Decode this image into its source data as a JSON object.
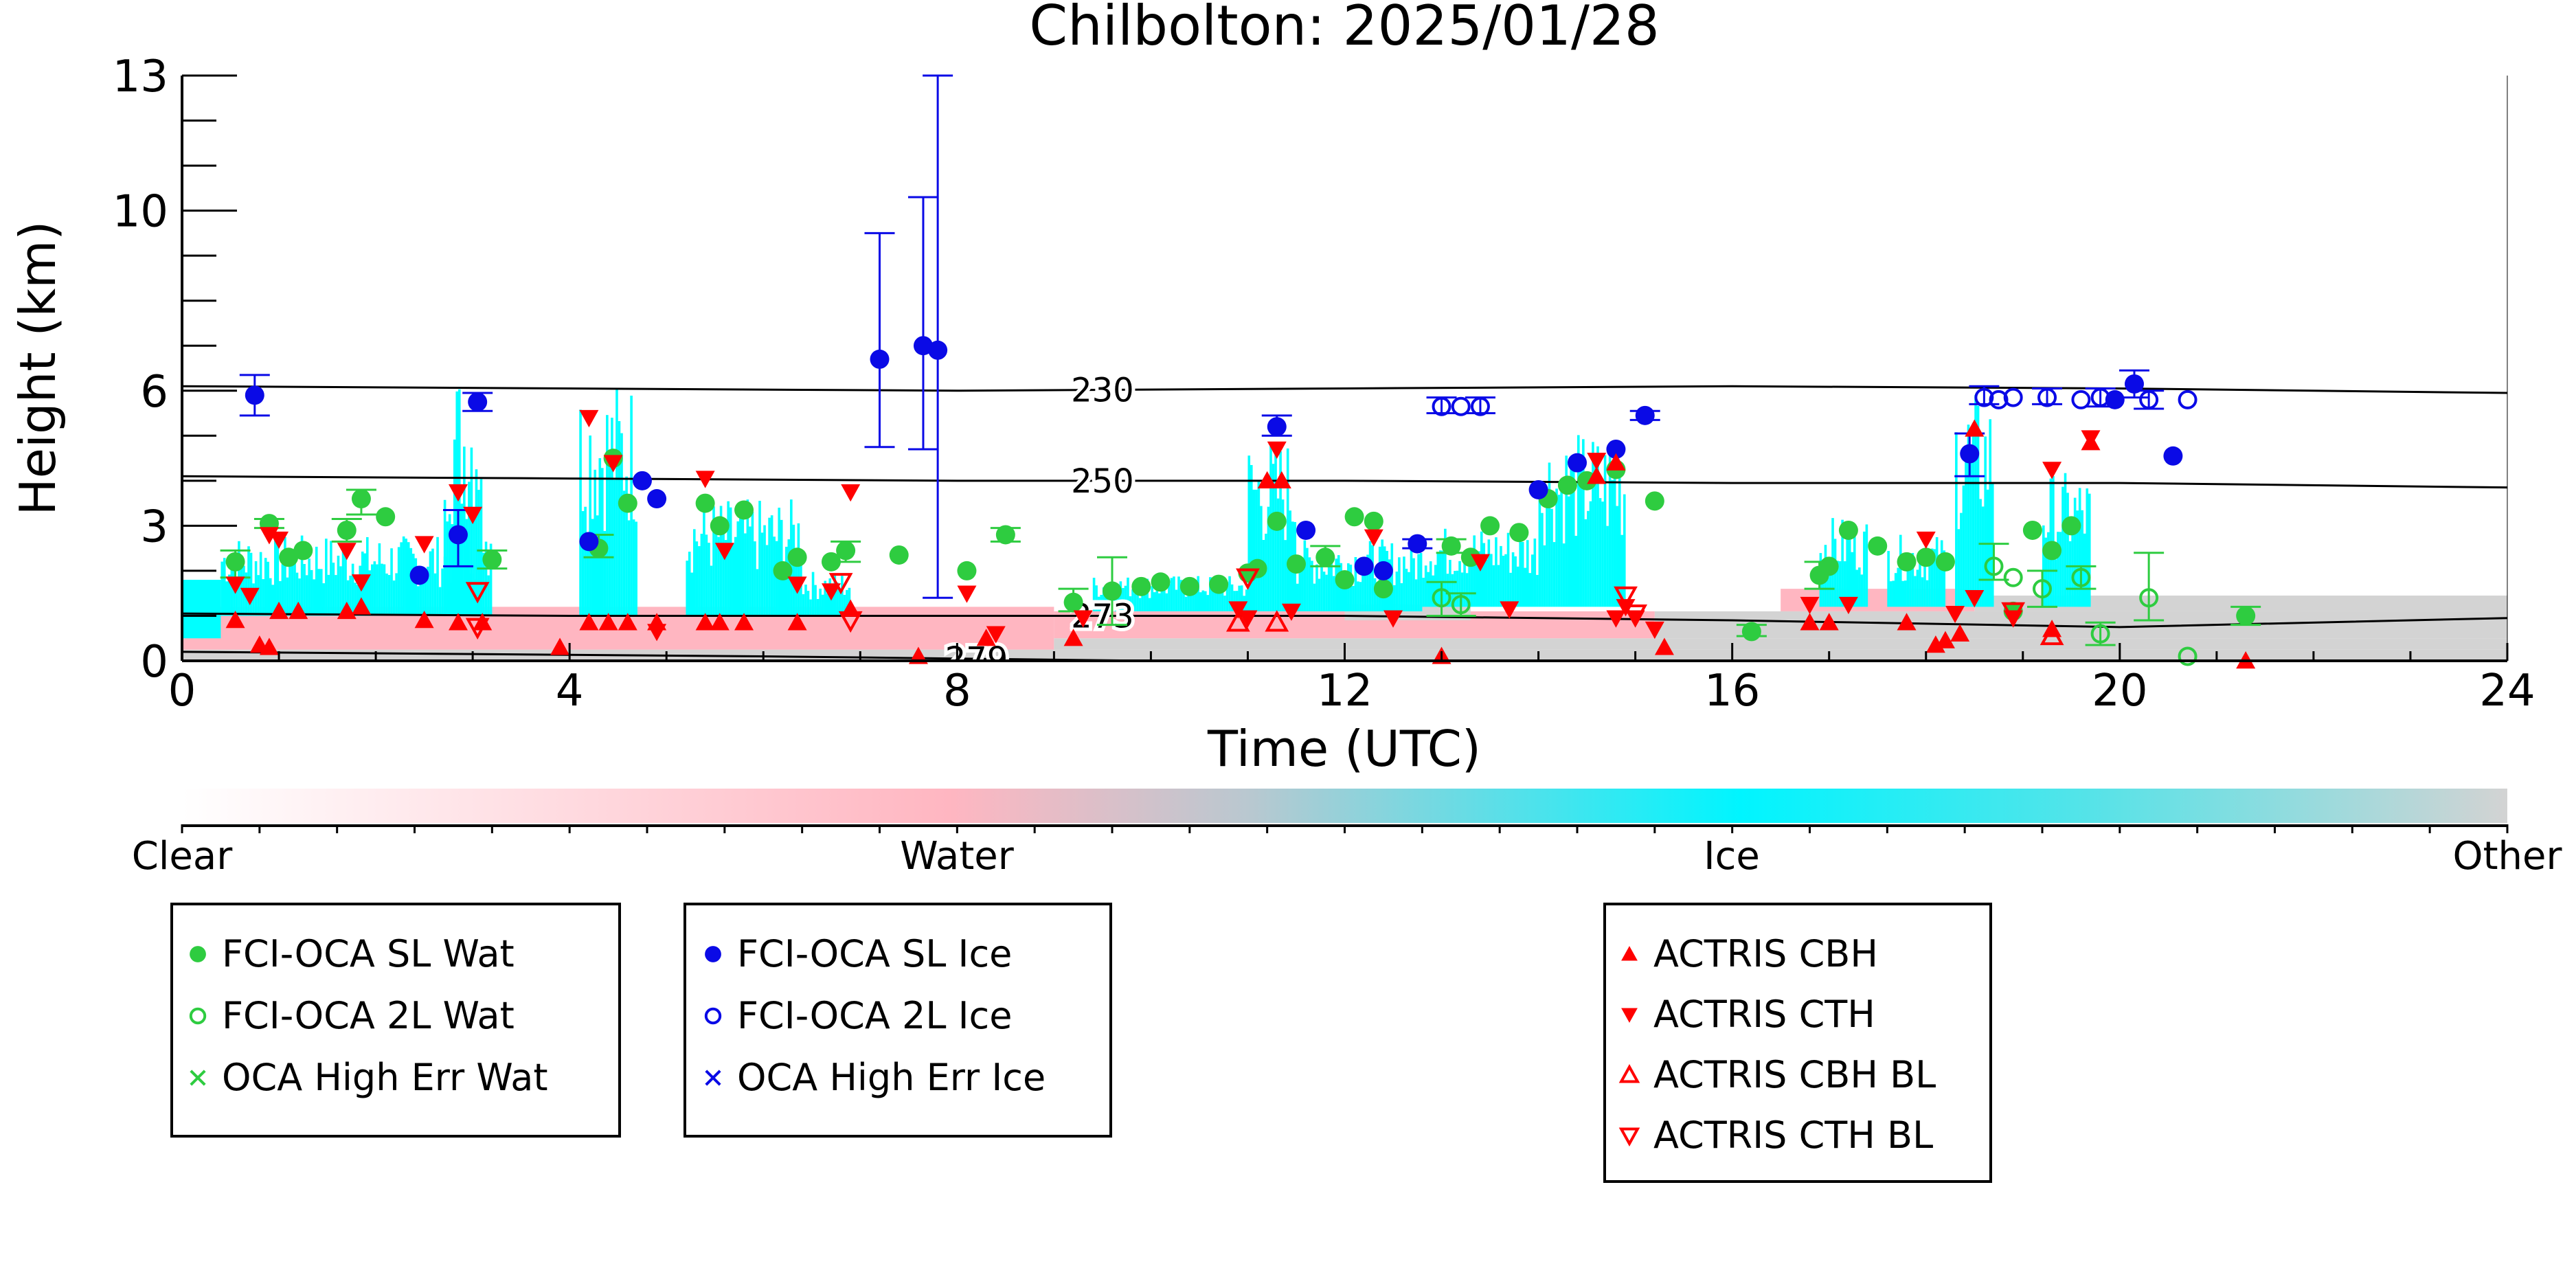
{
  "chart_data": {
    "type": "scatter",
    "title": "Chilbolton: 2025/01/28",
    "xlabel": "Time (UTC)",
    "ylabel": "Height (km)",
    "xlim": [
      0,
      24
    ],
    "ylim": [
      0,
      13
    ],
    "x_ticks": [
      0,
      4,
      8,
      12,
      16,
      20,
      24
    ],
    "y_ticks": [
      0,
      3,
      6,
      10,
      13
    ],
    "grid": false,
    "background_classification": {
      "colorbar_labels": [
        "Clear",
        "Water",
        "Ice",
        "Other"
      ],
      "colors": [
        "#ffffff",
        "#ffb6c1",
        "#00ffff",
        "#d3d3d3"
      ]
    },
    "contours": [
      {
        "label": "230",
        "x": [
          0,
          4,
          8,
          12,
          16,
          20,
          24
        ],
        "y": [
          6.1,
          6.05,
          6.0,
          6.05,
          6.1,
          6.05,
          5.95
        ]
      },
      {
        "label": "250",
        "x": [
          0,
          4,
          8,
          12,
          16,
          20,
          24
        ],
        "y": [
          4.1,
          4.05,
          4.0,
          4.0,
          3.95,
          3.95,
          3.85
        ]
      },
      {
        "label": "273",
        "x": [
          0,
          4,
          8,
          12,
          16,
          20,
          24
        ],
        "y": [
          1.05,
          1.0,
          1.0,
          1.0,
          0.9,
          0.75,
          0.95
        ]
      },
      {
        "label": "279",
        "x": [
          0,
          3,
          6,
          8,
          10,
          12,
          16,
          20,
          24
        ],
        "y": [
          0.2,
          0.15,
          0.1,
          0.05,
          0.0,
          0.0,
          0.0,
          0.0,
          0.0
        ]
      }
    ],
    "series": [
      {
        "name": "FCI-OCA SL Wat",
        "marker": "filled-circle",
        "color": "#2ecc40",
        "points": [
          [
            0.55,
            2.2
          ],
          [
            0.9,
            3.05
          ],
          [
            1.1,
            2.3
          ],
          [
            1.25,
            2.45
          ],
          [
            1.7,
            2.9
          ],
          [
            1.85,
            3.6
          ],
          [
            2.1,
            3.2
          ],
          [
            3.2,
            2.25
          ],
          [
            4.3,
            2.5
          ],
          [
            4.45,
            4.5
          ],
          [
            4.6,
            3.5
          ],
          [
            5.4,
            3.5
          ],
          [
            5.55,
            3.0
          ],
          [
            5.8,
            3.35
          ],
          [
            6.2,
            2.0
          ],
          [
            6.35,
            2.3
          ],
          [
            6.7,
            2.2
          ],
          [
            6.85,
            2.45
          ],
          [
            7.4,
            2.35
          ],
          [
            8.1,
            2.0
          ],
          [
            8.5,
            2.8
          ],
          [
            9.2,
            1.3
          ],
          [
            9.6,
            1.55
          ],
          [
            9.9,
            1.65
          ],
          [
            10.1,
            1.75
          ],
          [
            10.4,
            1.65
          ],
          [
            10.7,
            1.7
          ],
          [
            11.0,
            1.95
          ],
          [
            11.1,
            2.05
          ],
          [
            11.3,
            3.1
          ],
          [
            11.5,
            2.15
          ],
          [
            11.8,
            2.3
          ],
          [
            12.0,
            1.8
          ],
          [
            12.1,
            3.2
          ],
          [
            12.3,
            3.1
          ],
          [
            12.4,
            1.6
          ],
          [
            13.1,
            2.55
          ],
          [
            13.3,
            2.3
          ],
          [
            13.5,
            3.0
          ],
          [
            13.8,
            2.85
          ],
          [
            14.1,
            3.6
          ],
          [
            14.3,
            3.9
          ],
          [
            14.5,
            4.0
          ],
          [
            14.8,
            4.25
          ],
          [
            15.2,
            3.55
          ],
          [
            16.2,
            0.65
          ],
          [
            16.9,
            1.9
          ],
          [
            17.0,
            2.1
          ],
          [
            17.2,
            2.9
          ],
          [
            17.5,
            2.55
          ],
          [
            17.8,
            2.2
          ],
          [
            18.0,
            2.3
          ],
          [
            18.2,
            2.2
          ],
          [
            18.9,
            1.1
          ],
          [
            19.1,
            2.9
          ],
          [
            19.3,
            2.45
          ],
          [
            19.5,
            3.0
          ],
          [
            21.3,
            1.0
          ]
        ]
      },
      {
        "name": "FCI-OCA 2L Wat",
        "marker": "open-circle",
        "color": "#2ecc40",
        "points": [
          [
            13.0,
            1.4
          ],
          [
            13.2,
            1.25
          ],
          [
            18.7,
            2.1
          ],
          [
            18.9,
            1.85
          ],
          [
            19.2,
            1.6
          ],
          [
            19.6,
            1.85
          ],
          [
            19.8,
            0.6
          ],
          [
            20.3,
            1.4
          ],
          [
            20.7,
            0.1
          ]
        ]
      },
      {
        "name": "OCA High Err Wat",
        "marker": "x",
        "color": "#2ecc40",
        "points": []
      },
      {
        "name": "FCI-OCA SL Ice",
        "marker": "filled-circle",
        "color": "#0a0ae6",
        "points": [
          [
            0.75,
            5.9
          ],
          [
            2.45,
            1.9
          ],
          [
            2.85,
            2.8
          ],
          [
            3.05,
            5.75
          ],
          [
            4.2,
            2.65
          ],
          [
            4.75,
            4.0
          ],
          [
            4.9,
            3.6
          ],
          [
            7.2,
            6.7
          ],
          [
            7.65,
            7.0
          ],
          [
            7.8,
            6.9
          ],
          [
            11.3,
            5.2
          ],
          [
            11.6,
            2.9
          ],
          [
            12.2,
            2.1
          ],
          [
            12.4,
            2.0
          ],
          [
            12.75,
            2.6
          ],
          [
            14.0,
            3.8
          ],
          [
            14.4,
            4.4
          ],
          [
            14.8,
            4.7
          ],
          [
            15.1,
            5.45
          ],
          [
            18.45,
            4.6
          ],
          [
            19.95,
            5.8
          ],
          [
            20.15,
            6.15
          ],
          [
            20.55,
            4.55
          ]
        ]
      },
      {
        "name": "FCI-OCA 2L Ice",
        "marker": "open-circle",
        "color": "#0a0ae6",
        "points": [
          [
            13.0,
            5.65
          ],
          [
            13.2,
            5.65
          ],
          [
            13.4,
            5.65
          ],
          [
            18.6,
            5.85
          ],
          [
            18.75,
            5.8
          ],
          [
            18.9,
            5.85
          ],
          [
            19.25,
            5.85
          ],
          [
            19.6,
            5.8
          ],
          [
            19.8,
            5.85
          ],
          [
            20.3,
            5.8
          ],
          [
            20.7,
            5.8
          ]
        ]
      },
      {
        "name": "OCA High Err Ice",
        "marker": "x",
        "color": "#0a0ae6",
        "points": []
      },
      {
        "name": "ACTRIS CBH",
        "marker": "filled-triangle-up",
        "color": "#ff0000",
        "points": [
          [
            0.55,
            0.9
          ],
          [
            0.8,
            0.35
          ],
          [
            0.9,
            0.3
          ],
          [
            1.0,
            1.1
          ],
          [
            1.2,
            1.1
          ],
          [
            1.7,
            1.1
          ],
          [
            1.85,
            1.2
          ],
          [
            2.5,
            0.9
          ],
          [
            2.85,
            0.85
          ],
          [
            3.1,
            0.85
          ],
          [
            3.9,
            0.3
          ],
          [
            4.2,
            0.85
          ],
          [
            4.4,
            0.85
          ],
          [
            4.6,
            0.85
          ],
          [
            4.9,
            0.85
          ],
          [
            5.4,
            0.85
          ],
          [
            5.55,
            0.85
          ],
          [
            5.8,
            0.85
          ],
          [
            6.35,
            0.85
          ],
          [
            6.9,
            1.15
          ],
          [
            7.6,
            0.1
          ],
          [
            8.3,
            0.5
          ],
          [
            9.2,
            0.5
          ],
          [
            11.2,
            4.0
          ],
          [
            11.35,
            4.0
          ],
          [
            13.0,
            0.1
          ],
          [
            14.6,
            4.1
          ],
          [
            14.8,
            4.4
          ],
          [
            15.3,
            0.3
          ],
          [
            16.8,
            0.85
          ],
          [
            17.0,
            0.85
          ],
          [
            17.8,
            0.85
          ],
          [
            18.1,
            0.35
          ],
          [
            18.2,
            0.45
          ],
          [
            18.35,
            0.6
          ],
          [
            18.5,
            5.15
          ],
          [
            19.3,
            0.7
          ],
          [
            19.7,
            4.85
          ],
          [
            21.3,
            0.0
          ]
        ]
      },
      {
        "name": "ACTRIS CTH",
        "marker": "filled-triangle-down",
        "color": "#ff0000",
        "points": [
          [
            0.55,
            1.7
          ],
          [
            0.7,
            1.45
          ],
          [
            0.9,
            2.8
          ],
          [
            1.0,
            2.7
          ],
          [
            1.7,
            2.45
          ],
          [
            1.85,
            1.75
          ],
          [
            2.5,
            2.6
          ],
          [
            2.85,
            3.75
          ],
          [
            3.0,
            3.25
          ],
          [
            4.2,
            5.4
          ],
          [
            4.45,
            4.4
          ],
          [
            4.9,
            0.65
          ],
          [
            5.4,
            4.05
          ],
          [
            5.6,
            2.45
          ],
          [
            6.35,
            1.7
          ],
          [
            6.7,
            1.55
          ],
          [
            6.9,
            3.75
          ],
          [
            8.1,
            1.5
          ],
          [
            8.4,
            0.6
          ],
          [
            9.3,
            0.95
          ],
          [
            10.9,
            1.15
          ],
          [
            11.0,
            0.95
          ],
          [
            11.3,
            4.7
          ],
          [
            11.45,
            1.1
          ],
          [
            12.3,
            2.75
          ],
          [
            12.5,
            0.95
          ],
          [
            13.4,
            2.2
          ],
          [
            13.7,
            1.15
          ],
          [
            14.6,
            4.45
          ],
          [
            14.8,
            0.95
          ],
          [
            14.9,
            1.2
          ],
          [
            15.0,
            0.95
          ],
          [
            15.2,
            0.7
          ],
          [
            16.8,
            1.25
          ],
          [
            17.2,
            1.25
          ],
          [
            18.0,
            2.7
          ],
          [
            18.3,
            1.05
          ],
          [
            18.5,
            1.4
          ],
          [
            18.9,
            0.95
          ],
          [
            19.3,
            4.25
          ],
          [
            19.7,
            4.95
          ]
        ]
      },
      {
        "name": "ACTRIS CBH BL",
        "marker": "open-triangle-up",
        "color": "#ff0000",
        "points": [
          [
            10.9,
            0.85
          ],
          [
            11.3,
            0.85
          ],
          [
            19.3,
            0.55
          ]
        ]
      },
      {
        "name": "ACTRIS CTH BL",
        "marker": "open-triangle-down",
        "color": "#ff0000",
        "points": [
          [
            3.05,
            1.55
          ],
          [
            3.05,
            0.75
          ],
          [
            6.8,
            1.75
          ],
          [
            6.9,
            0.9
          ],
          [
            11.0,
            1.85
          ],
          [
            14.9,
            1.45
          ],
          [
            15.0,
            1.05
          ],
          [
            18.9,
            1.1
          ]
        ]
      }
    ],
    "error_bars": {
      "FCI-OCA SL Ice": [
        [
          0.75,
          5.45,
          6.35
        ],
        [
          2.85,
          2.1,
          3.35
        ],
        [
          3.05,
          5.55,
          5.95
        ],
        [
          7.2,
          4.75,
          9.5
        ],
        [
          7.65,
          4.7,
          10.3
        ],
        [
          7.8,
          1.4,
          13.0
        ],
        [
          11.3,
          5.0,
          5.45
        ],
        [
          12.75,
          2.5,
          2.7
        ],
        [
          15.1,
          5.35,
          5.55
        ],
        [
          18.45,
          4.1,
          5.05
        ],
        [
          20.15,
          5.85,
          6.45
        ]
      ],
      "FCI-OCA SL Wat": [
        [
          0.55,
          1.85,
          2.45
        ],
        [
          0.9,
          2.95,
          3.15
        ],
        [
          1.7,
          2.65,
          3.15
        ],
        [
          1.85,
          3.25,
          3.8
        ],
        [
          3.2,
          2.05,
          2.45
        ],
        [
          4.3,
          2.3,
          2.8
        ],
        [
          6.85,
          2.2,
          2.65
        ],
        [
          8.5,
          2.65,
          2.95
        ],
        [
          9.2,
          1.1,
          1.6
        ],
        [
          9.6,
          0.8,
          2.3
        ],
        [
          11.8,
          2.1,
          2.55
        ],
        [
          13.1,
          2.4,
          2.7
        ],
        [
          16.2,
          0.55,
          0.8
        ],
        [
          16.9,
          1.6,
          2.2
        ],
        [
          21.3,
          0.8,
          1.2
        ]
      ],
      "FCI-OCA 2L Wat": [
        [
          13.0,
          1.0,
          1.75
        ],
        [
          13.2,
          1.0,
          1.5
        ],
        [
          18.7,
          1.8,
          2.6
        ],
        [
          19.2,
          1.2,
          2.0
        ],
        [
          19.6,
          1.6,
          2.1
        ],
        [
          19.8,
          0.35,
          0.85
        ],
        [
          20.3,
          0.9,
          2.4
        ]
      ],
      "FCI-OCA 2L Ice": [
        [
          13.0,
          5.5,
          5.85
        ],
        [
          13.4,
          5.5,
          5.85
        ],
        [
          18.6,
          5.7,
          6.1
        ],
        [
          19.25,
          5.7,
          6.05
        ],
        [
          19.8,
          5.65,
          6.05
        ],
        [
          20.3,
          5.6,
          6.0
        ]
      ]
    },
    "legend": {
      "placement": "below-colorbar",
      "wat_entries": [
        "FCI-OCA SL Wat",
        "FCI-OCA 2L Wat",
        "OCA High Err Wat"
      ],
      "ice_entries": [
        "FCI-OCA SL Ice",
        "FCI-OCA 2L Ice",
        "OCA High Err Ice"
      ],
      "actris_entries": [
        "ACTRIS CBH",
        "ACTRIS CTH",
        "ACTRIS CBH BL",
        "ACTRIS CTH BL"
      ]
    }
  }
}
